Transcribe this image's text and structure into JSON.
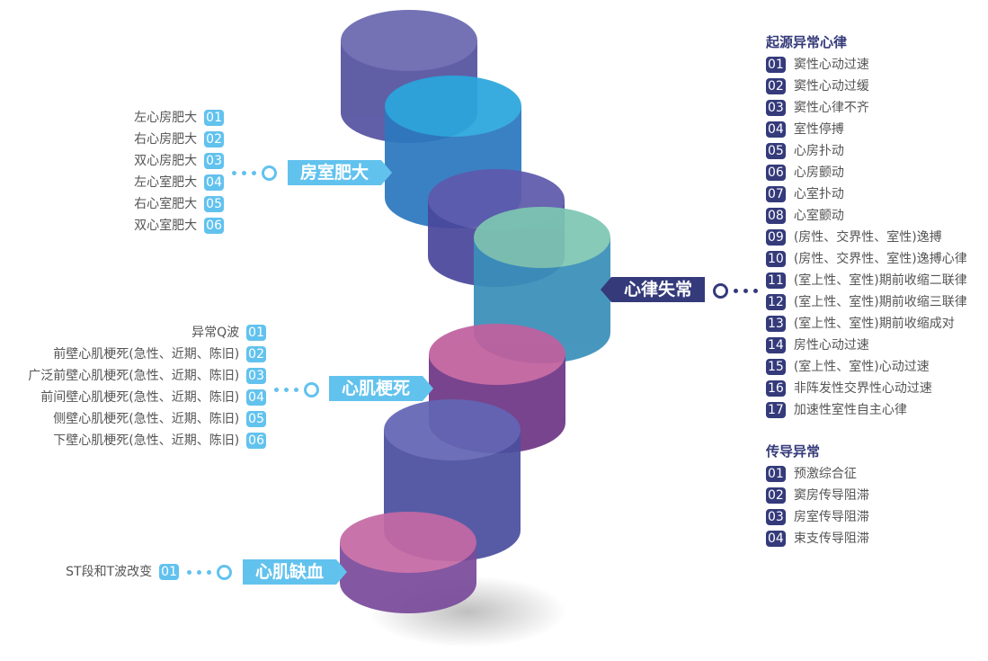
{
  "colors": {
    "light_accent": "#62c2ee",
    "dark_accent": "#343a7a"
  },
  "groups": {
    "hypertrophy": {
      "label": "房室肥大",
      "items": [
        {
          "no": "01",
          "text": "左心房肥大"
        },
        {
          "no": "02",
          "text": "右心房肥大"
        },
        {
          "no": "03",
          "text": "双心房肥大"
        },
        {
          "no": "04",
          "text": "左心室肥大"
        },
        {
          "no": "05",
          "text": "右心室肥大"
        },
        {
          "no": "06",
          "text": "双心室肥大"
        }
      ]
    },
    "infarction": {
      "label": "心肌梗死",
      "items": [
        {
          "no": "01",
          "text": "异常Q波"
        },
        {
          "no": "02",
          "text": "前壁心肌梗死(急性、近期、陈旧)"
        },
        {
          "no": "03",
          "text": "广泛前壁心肌梗死(急性、近期、陈旧)"
        },
        {
          "no": "04",
          "text": "前间壁心肌梗死(急性、近期、陈旧)"
        },
        {
          "no": "05",
          "text": "侧壁心肌梗死(急性、近期、陈旧)"
        },
        {
          "no": "06",
          "text": "下壁心肌梗死(急性、近期、陈旧)"
        }
      ]
    },
    "ischemia": {
      "label": "心肌缺血",
      "items": [
        {
          "no": "01",
          "text": "ST段和T波改变"
        }
      ]
    },
    "arrhythmia": {
      "label": "心律失常",
      "origin": {
        "heading": "起源异常心律",
        "items": [
          {
            "no": "01",
            "text": "窦性心动过速"
          },
          {
            "no": "02",
            "text": "窦性心动过缓"
          },
          {
            "no": "03",
            "text": "窦性心律不齐"
          },
          {
            "no": "04",
            "text": "室性停搏"
          },
          {
            "no": "05",
            "text": "心房扑动"
          },
          {
            "no": "06",
            "text": "心房颤动"
          },
          {
            "no": "07",
            "text": "心室扑动"
          },
          {
            "no": "08",
            "text": "心室颤动"
          },
          {
            "no": "09",
            "text": "(房性、交界性、室性)逸搏"
          },
          {
            "no": "10",
            "text": "(房性、交界性、室性)逸搏心律"
          },
          {
            "no": "11",
            "text": "(室上性、室性)期前收缩二联律"
          },
          {
            "no": "12",
            "text": "(室上性、室性)期前收缩三联律"
          },
          {
            "no": "13",
            "text": "(室上性、室性)期前收缩成对"
          },
          {
            "no": "14",
            "text": "房性心动过速"
          },
          {
            "no": "15",
            "text": "(室上性、室性)心动过速"
          },
          {
            "no": "16",
            "text": "非阵发性交界性心动过速"
          },
          {
            "no": "17",
            "text": "加速性室性自主心律"
          }
        ]
      },
      "conduction": {
        "heading": "传导异常",
        "items": [
          {
            "no": "01",
            "text": "预激综合征"
          },
          {
            "no": "02",
            "text": "窦房传导阻滞"
          },
          {
            "no": "03",
            "text": "房室传导阻滞"
          },
          {
            "no": "04",
            "text": "束支传导阻滞"
          }
        ]
      }
    }
  }
}
